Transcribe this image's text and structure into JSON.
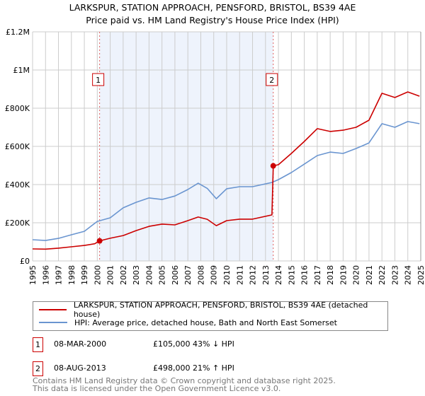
{
  "title": "LARKSPUR, STATION APPROACH, PENSFORD, BRISTOL, BS39 4AE",
  "subtitle": "Price paid vs. HM Land Registry's House Price Index (HPI)",
  "colors": {
    "property": "#cc0000",
    "hpi": "#6a95d0",
    "shade": "#eef3fc",
    "grid": "#cccccc"
  },
  "chart_data": {
    "type": "line",
    "title": "LARKSPUR, STATION APPROACH, PENSFORD, BRISTOL, BS39 4AE",
    "xlim": [
      1995,
      2025
    ],
    "ylim": [
      0,
      1200000
    ],
    "grid": true,
    "legend_position": "below",
    "y_ticks": [
      {
        "v": 0,
        "label": "£0"
      },
      {
        "v": 200000,
        "label": "£200K"
      },
      {
        "v": 400000,
        "label": "£400K"
      },
      {
        "v": 600000,
        "label": "£600K"
      },
      {
        "v": 800000,
        "label": "£800K"
      },
      {
        "v": 1000000,
        "label": "£1M"
      },
      {
        "v": 1200000,
        "label": "£1.2M"
      }
    ],
    "x_ticks": [
      "1995",
      "1996",
      "1997",
      "1998",
      "1999",
      "2000",
      "2001",
      "2002",
      "2003",
      "2004",
      "2005",
      "2006",
      "2007",
      "2008",
      "2009",
      "2010",
      "2011",
      "2012",
      "2013",
      "2014",
      "2015",
      "2016",
      "2017",
      "2018",
      "2019",
      "2020",
      "2021",
      "2022",
      "2023",
      "2024",
      "2025"
    ],
    "series": [
      {
        "name": "LARKSPUR, STATION APPROACH, PENSFORD, BRISTOL, BS39 4AE (detached house)",
        "x": [
          1995,
          1996,
          1997,
          1998,
          1999,
          1999.8,
          2000.18,
          2001,
          2002,
          2003,
          2004,
          2005,
          2006,
          2007,
          2007.8,
          2008.5,
          2009.2,
          2010,
          2011,
          2012,
          2013.5,
          2013.6,
          2014,
          2015,
          2016,
          2017,
          2018,
          2019,
          2020,
          2021,
          2022,
          2023,
          2024,
          2024.9
        ],
        "y": [
          63000,
          62000,
          67000,
          74000,
          81000,
          90000,
          105000,
          119000,
          133000,
          159000,
          181000,
          193000,
          189000,
          211000,
          230000,
          218000,
          185000,
          211000,
          219000,
          219000,
          241000,
          498000,
          504000,
          563000,
          626000,
          693000,
          678000,
          685000,
          700000,
          737000,
          878000,
          856000,
          885000,
          863000
        ]
      },
      {
        "name": "HPI: Average price, detached house, Bath and North East Somerset",
        "x": [
          1995,
          1996,
          1997,
          1998,
          1999,
          2000,
          2001,
          2002,
          2003,
          2004,
          2005,
          2006,
          2007,
          2007.8,
          2008.5,
          2009.2,
          2010,
          2011,
          2012,
          2013.5,
          2014,
          2015,
          2016,
          2017,
          2018,
          2019,
          2020,
          2021,
          2022,
          2023,
          2024,
          2024.9
        ],
        "y": [
          111000,
          107000,
          118000,
          137000,
          155000,
          207000,
          226000,
          278000,
          307000,
          330000,
          322000,
          340000,
          374000,
          407000,
          380000,
          326000,
          378000,
          389000,
          389000,
          411000,
          426000,
          463000,
          507000,
          552000,
          570000,
          563000,
          589000,
          618000,
          719000,
          700000,
          730000,
          719000
        ]
      }
    ],
    "annotations": [
      {
        "label": "1",
        "x": 2000.18,
        "y": 105000
      },
      {
        "label": "2",
        "x": 2013.6,
        "y": 498000
      }
    ],
    "shaded_range": [
      2000.18,
      2013.6
    ]
  },
  "legend": [
    {
      "label": "LARKSPUR, STATION APPROACH, PENSFORD, BRISTOL, BS39 4AE (detached house)"
    },
    {
      "label": "HPI: Average price, detached house, Bath and North East Somerset"
    }
  ],
  "sales": [
    {
      "num": "1",
      "date": "08-MAR-2000",
      "price": "£105,000",
      "hpi": "43% ↓ HPI"
    },
    {
      "num": "2",
      "date": "08-AUG-2013",
      "price": "£498,000",
      "hpi": "21% ↑ HPI"
    }
  ],
  "footer": [
    "Contains HM Land Registry data © Crown copyright and database right 2025.",
    "This data is licensed under the Open Government Licence v3.0."
  ]
}
